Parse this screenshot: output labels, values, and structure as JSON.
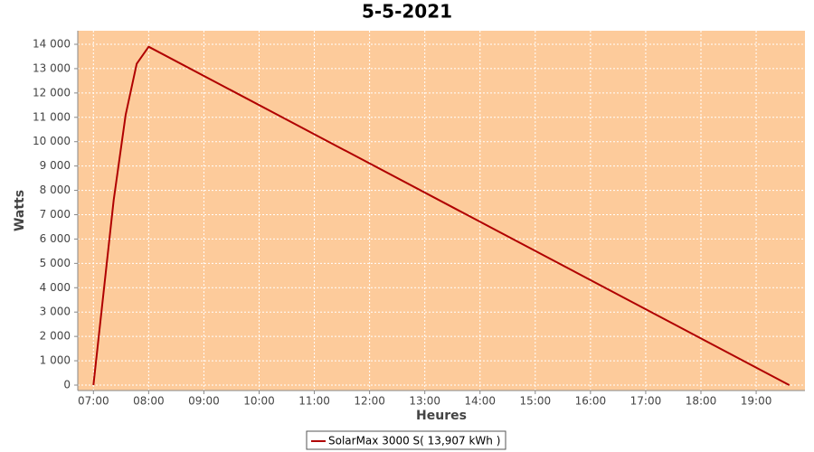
{
  "chart_data": {
    "type": "line",
    "title": "5-5-2021",
    "x_label": "Heures",
    "y_label": "Watts",
    "x": [
      "07:00",
      "07:22",
      "07:35",
      "07:47",
      "08:00",
      "19:36"
    ],
    "series": [
      {
        "name": "SolarMax 3000 S( 13,907 kWh )",
        "color": "#b00000",
        "values": [
          0,
          7600,
          11100,
          13200,
          13900,
          0
        ]
      }
    ],
    "xlim": [
      "06:43",
      "19:53"
    ],
    "xticks": [
      "07:00",
      "08:00",
      "09:00",
      "10:00",
      "11:00",
      "12:00",
      "13:00",
      "14:00",
      "15:00",
      "16:00",
      "17:00",
      "18:00",
      "19:00"
    ],
    "ylim": [
      -223,
      14557
    ],
    "yticks": [
      0,
      {
        "value": 1000,
        "label": "1 000"
      },
      {
        "value": 2000,
        "label": "2 000"
      },
      {
        "value": 3000,
        "label": "3 000"
      },
      {
        "value": 4000,
        "label": "4 000"
      },
      {
        "value": 5000,
        "label": "5 000"
      },
      {
        "value": 6000,
        "label": "6 000"
      },
      {
        "value": 7000,
        "label": "7 000"
      },
      {
        "value": 8000,
        "label": "8 000"
      },
      {
        "value": 9000,
        "label": "9 000"
      },
      {
        "value": 10000,
        "label": "10 000"
      },
      {
        "value": 11000,
        "label": "11 000"
      },
      {
        "value": 12000,
        "label": "12 000"
      },
      {
        "value": 13000,
        "label": "13 000"
      },
      {
        "value": 14000,
        "label": "14 000"
      }
    ],
    "grid": true,
    "plot_background": "#fdcb9b"
  }
}
